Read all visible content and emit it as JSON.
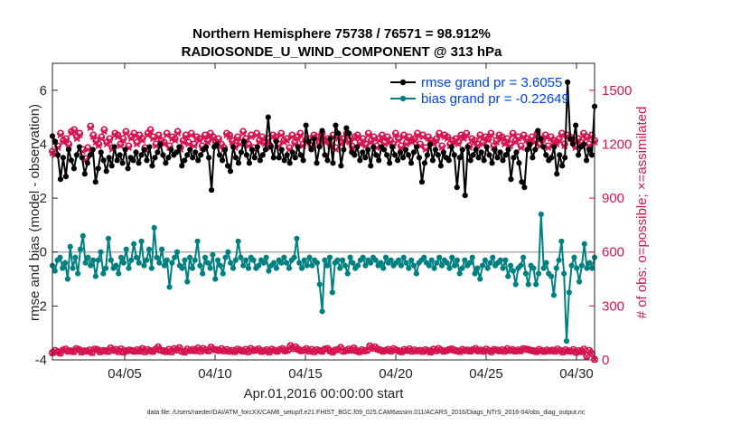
{
  "chart_data": {
    "type": "line",
    "title": "Northern Hemisphere 75738 / 76571 = 98.912%",
    "subtitle": "RADIOSONDE_U_WIND_COMPONENT @ 313 hPa",
    "xlabel": "Apr.01,2016 00:00:00 start",
    "ylabel": "rmse and bias (model - observation)",
    "ylabel_right": "# of obs: o=possible; ×=assimilated",
    "x_tick_labels": [
      "04/05",
      "04/10",
      "04/15",
      "04/20",
      "04/25",
      "04/30"
    ],
    "x_ticks": [
      5,
      10,
      15,
      20,
      25,
      30
    ],
    "xlim": [
      1,
      31
    ],
    "ylim": [
      -4,
      7
    ],
    "y_ticks": [
      -4,
      -2,
      0,
      2,
      4,
      6
    ],
    "y_tick_labels": [
      "-4",
      "-2",
      "0",
      "2",
      "4",
      "6"
    ],
    "ylim_right": [
      0,
      1650
    ],
    "y_ticks_right": [
      0,
      300,
      600,
      900,
      1200,
      1500
    ],
    "y_tick_labels_right": [
      "0",
      "300",
      "600",
      "900",
      "1200",
      "1500"
    ],
    "zero_line": true,
    "legend": {
      "location": "top-right",
      "entries": [
        "rmse grand pr = 3.6055",
        "bias grand pr = -0.22649"
      ]
    },
    "footer": "data file: /Users/raeder/DAI/ATM_forcXX/CAM6_setup/f.e21.FHIST_BGC.f09_025.CAM6assim.011/ACARS_2016/Diags_NTrS_2016-04/obs_diag_output.nc",
    "series": [
      {
        "name": "rmse",
        "color": "#000000",
        "values": [
          4.3,
          4.1,
          3.6,
          2.7,
          3.5,
          2.8,
          3.8,
          3.4,
          3.1,
          3.6,
          3.9,
          3.5,
          2.9,
          3.3,
          3.6,
          3.8,
          2.6,
          3.1,
          3.7,
          3.4,
          3.0,
          3.5,
          3.2,
          3.9,
          3.4,
          3.6,
          3.3,
          3.8,
          3.1,
          3.5,
          3.4,
          3.7,
          3.3,
          3.6,
          3.8,
          3.4,
          3.9,
          3.2,
          3.5,
          3.7,
          4.0,
          3.6,
          3.3,
          3.5,
          3.8,
          3.6,
          3.7,
          3.9,
          3.2,
          3.4,
          3.6,
          3.8,
          3.5,
          3.7,
          3.4,
          3.6,
          3.8,
          3.9,
          3.5,
          2.3,
          3.9,
          4.0,
          3.6,
          3.4,
          3.8,
          3.2,
          3.0,
          3.9,
          3.5,
          3.3,
          3.7,
          4.1,
          3.6,
          3.3,
          3.8,
          3.5,
          3.9,
          3.4,
          3.6,
          3.8,
          5.0,
          3.9,
          3.5,
          4.1,
          3.5,
          3.8,
          3.4,
          3.6,
          3.3,
          3.7,
          3.5,
          3.9,
          3.6,
          3.4,
          4.7,
          4.1,
          3.8,
          4.2,
          3.3,
          3.9,
          4.5,
          3.6,
          3.4,
          4.2,
          3.3,
          4.7,
          4.4,
          3.2,
          3.8,
          4.6,
          4.4,
          3.7,
          3.6,
          3.9,
          3.4,
          3.7,
          3.5,
          3.8,
          3.2,
          3.9,
          3.6,
          3.4,
          3.9,
          3.8,
          3.6,
          3.3,
          3.9,
          3.6,
          3.4,
          3.7,
          3.5,
          3.8,
          3.6,
          3.3,
          3.7,
          3.9,
          3.5,
          2.6,
          3.3,
          3.6,
          4.0,
          3.4,
          3.8,
          3.6,
          3.2,
          3.7,
          3.5,
          3.4,
          3.9,
          3.6,
          2.4,
          3.5,
          3.8,
          2.1,
          3.9,
          3.4,
          3.6,
          3.8,
          3.5,
          3.7,
          3.4,
          3.9,
          3.6,
          3.3,
          3.8,
          3.5,
          3.7,
          3.4,
          3.6,
          3.8,
          2.7,
          3.5,
          3.7,
          3.3,
          2.6,
          2.4,
          3.8,
          4.0,
          3.5,
          3.8,
          4.5,
          4.2,
          3.9,
          3.6,
          3.4,
          3.5,
          3.9,
          2.9,
          3.6,
          3.2,
          3.5,
          6.3,
          4.2,
          4.0,
          4.7,
          3.6,
          3.9,
          4.0,
          3.4,
          3.8,
          3.6,
          5.4
        ]
      },
      {
        "name": "bias",
        "color": "#008080",
        "values": [
          -0.5,
          -0.7,
          -0.3,
          -0.2,
          -0.6,
          -0.4,
          -1.0,
          0.2,
          -0.6,
          -0.2,
          -0.8,
          0.1,
          0.6,
          -0.4,
          -0.2,
          -0.5,
          -0.3,
          -0.9,
          -0.3,
          0.0,
          -0.8,
          -0.6,
          0.5,
          -0.3,
          -0.6,
          -0.5,
          -0.8,
          -0.2,
          -0.4,
          0.1,
          -0.6,
          -0.3,
          0.3,
          -0.2,
          -0.4,
          0.4,
          -0.5,
          -0.3,
          0.1,
          -0.6,
          0.9,
          -0.2,
          -0.4,
          0.1,
          -0.5,
          -0.3,
          -1.3,
          -0.4,
          -0.2,
          0.0,
          -0.5,
          -0.6,
          -0.3,
          -1.1,
          -0.2,
          -0.6,
          -0.3,
          0.4,
          -0.5,
          -0.8,
          -0.2,
          -0.4,
          -0.6,
          -0.1,
          -1.0,
          -0.3,
          -0.5,
          -0.8,
          -0.2,
          0.0,
          -0.4,
          -0.6,
          -0.3,
          0.4,
          -0.2,
          -0.5,
          -0.3,
          -0.6,
          -0.2,
          -0.3,
          -0.6,
          -0.5,
          -0.3,
          -0.4,
          -0.2,
          -0.7,
          -0.5,
          -0.4,
          -0.6,
          -0.3,
          -0.4,
          -0.2,
          -0.4,
          -0.6,
          -0.3,
          -0.2,
          0.5,
          -0.4,
          -0.6,
          -0.3,
          -0.5,
          -0.2,
          -0.5,
          -0.3,
          -0.4,
          -1.2,
          -2.2,
          -0.3,
          -0.5,
          -0.2,
          -1.5,
          -0.4,
          -0.3,
          -0.6,
          -0.3,
          -0.5,
          -0.8,
          -0.2,
          -0.4,
          -0.6,
          -0.5,
          -0.3,
          -0.2,
          -0.5,
          -0.3,
          -0.4,
          -0.2,
          -0.3,
          -0.5,
          -0.4,
          -0.6,
          -0.2,
          -0.4,
          -0.3,
          -0.5,
          -0.4,
          -0.3,
          -0.5,
          -0.2,
          -0.4,
          -0.6,
          -0.3,
          -0.5,
          -0.8,
          -0.4,
          -0.3,
          -0.2,
          -0.4,
          -0.5,
          -0.3,
          -0.6,
          -0.4,
          -0.2,
          -0.5,
          -0.3,
          -0.4,
          -0.6,
          -0.2,
          -0.5,
          -0.3,
          -0.8,
          -0.6,
          -0.3,
          -0.5,
          -0.4,
          -0.2,
          -0.8,
          -0.6,
          -1.0,
          -0.5,
          -0.3,
          -0.6,
          -0.4,
          -0.2,
          -0.5,
          -0.4,
          -0.3,
          -0.6,
          -0.3,
          -0.9,
          -0.5,
          -0.7,
          -1.2,
          -0.6,
          -0.5,
          -0.2,
          -0.8,
          -1.2,
          -0.5,
          -0.6,
          -1.2,
          -0.8,
          1.4,
          -0.6,
          -0.4,
          -0.8,
          -0.9,
          -1.6,
          -0.6,
          -0.3,
          0.4,
          -0.8,
          -3.3,
          -1.5,
          -0.5,
          -0.2,
          -0.6,
          -1.1,
          -0.5,
          0.3,
          -0.6,
          -0.4,
          -0.6,
          -0.2
        ]
      }
    ],
    "counts": {
      "name": "# of obs",
      "color": "#d6124f",
      "possible": [
        1160,
        1150,
        1190,
        1260,
        1220,
        1230,
        1200,
        1270,
        1280,
        1240,
        1260,
        1170,
        1120,
        1180,
        1300,
        1250,
        1220,
        1200,
        1240,
        1280,
        1210,
        1230,
        1180,
        1260,
        1250,
        1200,
        1230,
        1270,
        1190,
        1240,
        1260,
        1210,
        1250,
        1230,
        1180,
        1260,
        1280,
        1240,
        1200,
        1250,
        1220,
        1210,
        1260,
        1190,
        1240,
        1230,
        1270,
        1180,
        1220,
        1250,
        1210,
        1260,
        1200,
        1240,
        1230,
        1190,
        1250,
        1220,
        1260,
        1240,
        1210,
        1230,
        1200,
        1180,
        1260,
        1250,
        1220,
        1190,
        1240,
        1210,
        1270,
        1230,
        1200,
        1250,
        1180,
        1260,
        1220,
        1240,
        1210,
        1230,
        1190,
        1250,
        1240,
        1200,
        1260,
        1220,
        1230,
        1180,
        1250,
        1210,
        1240,
        1260,
        1200,
        1220,
        1230,
        1190,
        1250,
        1240,
        1210,
        1260,
        1220,
        1230,
        1200,
        1250,
        1180,
        1240,
        1210,
        1230,
        1260,
        1220,
        1190,
        1240,
        1250,
        1210,
        1230,
        1200,
        1260,
        1220,
        1240,
        1190,
        1230,
        1250,
        1210,
        1240,
        1220,
        1200,
        1260,
        1230,
        1190,
        1250,
        1210,
        1240,
        1220,
        1230,
        1260,
        1200,
        1250,
        1180,
        1240,
        1220,
        1210,
        1230,
        1260,
        1190,
        1250,
        1240,
        1200,
        1220,
        1230,
        1210,
        1250,
        1240,
        1260,
        1190,
        1230,
        1220,
        1200,
        1250,
        1210,
        1240,
        1230,
        1260,
        1190,
        1220,
        1250,
        1240,
        1210,
        1230,
        1200,
        1260,
        1220,
        1240,
        1190,
        1250,
        1230,
        1210,
        1240,
        1220,
        1260,
        1200,
        1230,
        1250,
        1190,
        1240,
        1220,
        1210,
        1230,
        1260,
        1200,
        1250,
        1240,
        1220,
        1190,
        1230,
        1210,
        1260,
        1240,
        1200,
        1250,
        1220
      ],
      "assimilated": [
        1150,
        1140,
        1180,
        1250,
        1210,
        1220,
        1190,
        1260,
        1270,
        1230,
        1250,
        1160,
        1110,
        1170,
        1290,
        1240,
        1210,
        1190,
        1230,
        1270,
        1200,
        1220,
        1170,
        1250,
        1240,
        1190,
        1220,
        1260,
        1180,
        1230,
        1250,
        1200,
        1240,
        1220,
        1170,
        1250,
        1270,
        1230,
        1190,
        1240,
        1210,
        1200,
        1250,
        1180,
        1230,
        1220,
        1260,
        1170,
        1210,
        1240,
        1200,
        1250,
        1190,
        1230,
        1220,
        1180,
        1240,
        1210,
        1250,
        1230,
        1200,
        1220,
        1190,
        1170,
        1250,
        1240,
        1210,
        1180,
        1230,
        1200,
        1260,
        1220,
        1190,
        1240,
        1170,
        1250,
        1210,
        1230,
        1200,
        1220,
        1180,
        1240,
        1230,
        1190,
        1250,
        1210,
        1220,
        1170,
        1240,
        1200,
        1230,
        1250,
        1190,
        1210,
        1220,
        1180,
        1240,
        1230,
        1200,
        1250,
        1210,
        1220,
        1190,
        1240,
        1170,
        1230,
        1200,
        1220,
        1250,
        1210,
        1180,
        1230,
        1240,
        1200,
        1220,
        1190,
        1250,
        1210,
        1230,
        1180,
        1220,
        1240,
        1200,
        1230,
        1210,
        1190,
        1250,
        1220,
        1180,
        1240,
        1200,
        1230,
        1210,
        1220,
        1250,
        1190,
        1240,
        1170,
        1230,
        1210,
        1200,
        1220,
        1250,
        1180,
        1240,
        1230,
        1190,
        1210,
        1220,
        1200,
        1240,
        1230,
        1250,
        1180,
        1220,
        1210,
        1190,
        1240,
        1200,
        1230,
        1220,
        1250,
        1180,
        1210,
        1240,
        1230,
        1200,
        1220,
        1190,
        1250,
        1210,
        1230,
        1180,
        1240,
        1220,
        1200,
        1230,
        1210,
        1250,
        1190,
        1220,
        1240,
        1180,
        1230,
        1210,
        1200,
        1220,
        1250,
        1190,
        1240,
        1230,
        1210,
        1180,
        1220,
        1200,
        1250,
        1230,
        1190,
        1240,
        1210
      ],
      "low_possible": [
        40,
        52,
        45,
        38,
        55,
        60,
        48,
        50,
        46,
        62,
        58,
        44,
        50,
        49,
        55,
        41,
        60,
        57,
        45,
        52,
        50,
        47,
        66,
        53,
        58,
        46,
        61,
        44,
        50,
        55,
        52,
        48,
        56,
        49,
        63,
        45,
        57,
        51,
        47,
        59,
        72,
        54,
        50,
        46,
        58,
        45,
        62,
        55,
        68,
        48,
        44,
        60,
        52,
        57,
        51,
        66,
        48,
        63,
        55,
        50,
        71,
        58,
        56,
        52,
        62,
        50,
        57,
        48,
        53,
        46,
        60,
        54,
        49,
        58,
        45,
        63,
        52,
        55,
        61,
        47,
        50,
        56,
        44,
        59,
        53,
        48,
        57,
        62,
        50,
        55,
        79,
        63,
        72,
        58,
        51,
        54,
        62,
        49,
        58,
        45,
        56,
        52,
        48,
        60,
        63,
        50,
        44,
        55,
        57,
        69,
        48,
        52,
        60,
        54,
        66,
        51,
        45,
        56,
        50,
        53,
        78,
        65,
        72,
        60,
        55,
        48,
        53,
        58,
        49,
        62,
        55,
        50,
        45,
        57,
        52,
        61,
        48,
        55,
        50,
        53,
        47,
        56,
        51,
        44,
        59,
        50,
        63,
        55,
        48,
        52,
        57,
        61,
        54,
        50,
        47,
        58,
        52,
        55,
        49,
        56,
        63,
        50,
        54,
        48,
        60,
        52,
        45,
        58,
        55,
        50,
        56,
        48,
        62,
        53,
        57,
        49,
        55,
        51,
        62,
        60,
        57,
        53,
        50,
        46,
        58,
        52,
        47,
        55,
        50,
        54,
        48,
        60,
        52,
        44,
        56,
        50,
        48,
        57,
        42,
        51,
        46,
        60,
        22,
        52,
        35,
        3
      ],
      "low_assimilated": [
        38,
        50,
        43,
        36,
        53,
        58,
        46,
        48,
        44,
        60,
        56,
        42,
        48,
        47,
        53,
        39,
        58,
        55,
        43,
        50,
        48,
        45,
        64,
        51,
        56,
        44,
        59,
        42,
        48,
        53,
        50,
        46,
        54,
        47,
        61,
        43,
        55,
        49,
        45,
        57,
        70,
        52,
        48,
        44,
        56,
        43,
        60,
        53,
        66,
        46,
        42,
        58,
        50,
        55,
        49,
        64,
        46,
        61,
        53,
        48,
        69,
        56,
        54,
        50,
        60,
        48,
        55,
        46,
        51,
        44,
        58,
        52,
        47,
        56,
        43,
        61,
        50,
        53,
        59,
        45,
        48,
        54,
        42,
        57,
        51,
        46,
        55,
        60,
        48,
        53,
        77,
        61,
        70,
        56,
        49,
        52,
        60,
        47,
        56,
        43,
        54,
        50,
        46,
        58,
        61,
        48,
        42,
        53,
        55,
        67,
        46,
        50,
        58,
        52,
        64,
        49,
        43,
        54,
        48,
        51,
        76,
        63,
        70,
        58,
        53,
        46,
        51,
        56,
        47,
        60,
        53,
        48,
        43,
        55,
        50,
        59,
        46,
        53,
        48,
        51,
        45,
        54,
        49,
        42,
        57,
        48,
        61,
        53,
        46,
        50,
        55,
        59,
        52,
        48,
        45,
        56,
        50,
        53,
        47,
        54,
        61,
        48,
        52,
        46,
        58,
        50,
        43,
        56,
        53,
        48,
        54,
        46,
        60,
        51,
        55,
        47,
        53,
        49,
        60,
        58,
        55,
        51,
        48,
        44,
        56,
        50,
        45,
        53,
        48,
        52,
        46,
        58,
        50,
        42,
        54,
        48,
        46,
        55,
        40,
        49,
        44,
        58,
        20,
        50,
        33,
        2
      ]
    }
  }
}
